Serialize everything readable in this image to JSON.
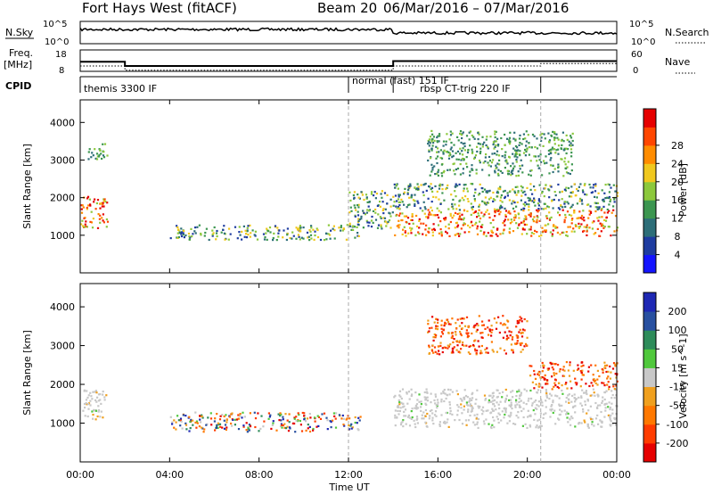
{
  "title": {
    "radar": "Fort Hays West (fitACF)",
    "beam": "Beam 20",
    "dates": "06/Mar/2016 – 07/Mar/2016"
  },
  "strips": {
    "nsky_label": "N.Sky",
    "nsky_ticks": [
      "10^5",
      "10^0"
    ],
    "nsearch_label": "N.Search",
    "nsearch_ticks": [
      "10^5",
      "10^0"
    ],
    "freq_label": "Freq.",
    "freq_unit": "[MHz]",
    "freq_ticks": [
      "18",
      "8"
    ],
    "nave_label": "Nave",
    "nave_ticks": [
      "60",
      "0"
    ],
    "cpid_label": "CPID",
    "cpid_segments": [
      {
        "label": "themis 3300 IF",
        "start_hr": 0.0
      },
      {
        "label": "normal (fast) 151 IF",
        "start_hr": 12.0
      },
      {
        "label": "rbsp CT-trig 220 IF",
        "start_hr": 14.0
      },
      {
        "label": "",
        "start_hr": 20.6
      }
    ],
    "freq_series": {
      "x_hr": [
        0,
        2,
        2,
        12,
        14,
        14,
        24
      ],
      "y_mhz": [
        12.5,
        12.5,
        10.5,
        10.5,
        10.5,
        12.8,
        12.8
      ]
    },
    "nave_series": {
      "x_hr": [
        0,
        2,
        2,
        12,
        14,
        14,
        20.6,
        20.6,
        24
      ],
      "y": [
        15,
        15,
        3,
        3,
        3,
        15,
        15,
        22,
        22
      ]
    }
  },
  "chart_data": [
    {
      "type": "heatmap",
      "name": "power",
      "ylabel": "Slant Range [km]",
      "ylim": [
        0,
        4600
      ],
      "yticks": [
        "1000",
        "2000",
        "3000",
        "4000"
      ],
      "xlim_hr": [
        0,
        24
      ],
      "colorbar": {
        "label": "Power [dB]",
        "ticks": [
          "4",
          "8",
          "12",
          "16",
          "20",
          "24",
          "28"
        ],
        "colors": [
          "#1414ff",
          "#1e3ca0",
          "#2d6e78",
          "#3c9650",
          "#8cc83c",
          "#f0c81e",
          "#ff8c00",
          "#ff4600",
          "#e60000"
        ]
      },
      "features": [
        {
          "start_hr": 0.0,
          "end_hr": 1.2,
          "range_km": [
            1200,
            2100
          ],
          "level": "strong"
        },
        {
          "start_hr": 0.3,
          "end_hr": 1.2,
          "range_km": [
            3000,
            3500
          ],
          "level": "weak"
        },
        {
          "start_hr": 4.0,
          "end_hr": 12.5,
          "range_km": [
            900,
            1300
          ],
          "level": "moderate"
        },
        {
          "start_hr": 12.0,
          "end_hr": 14.0,
          "range_km": [
            1200,
            2200
          ],
          "level": "moderate"
        },
        {
          "start_hr": 14.0,
          "end_hr": 24.0,
          "range_km": [
            1000,
            1700
          ],
          "level": "strong"
        },
        {
          "start_hr": 14.0,
          "end_hr": 24.0,
          "range_km": [
            1700,
            2400
          ],
          "level": "moderate"
        },
        {
          "start_hr": 15.5,
          "end_hr": 22.0,
          "range_km": [
            2600,
            3800
          ],
          "level": "weak"
        }
      ]
    },
    {
      "type": "heatmap",
      "name": "velocity",
      "ylabel": "Slant Range [km]",
      "ylim": [
        0,
        4600
      ],
      "yticks": [
        "1000",
        "2000",
        "3000",
        "4000"
      ],
      "xlim_hr": [
        0,
        24
      ],
      "colorbar": {
        "label": "Velocity [m s^-1]",
        "ticks": [
          "200",
          "100",
          "50",
          "15",
          "-15",
          "-50",
          "-100",
          "-200"
        ],
        "colors": [
          "#1e28b4",
          "#2850a0",
          "#2e8c5a",
          "#50c83c",
          "#c8c8c8",
          "#f0a01e",
          "#ff7800",
          "#ff3c00",
          "#e60000"
        ]
      },
      "features": [
        {
          "start_hr": 0.0,
          "end_hr": 1.2,
          "range_km": [
            1100,
            1900
          ],
          "level": "ground-scatter"
        },
        {
          "start_hr": 4.0,
          "end_hr": 12.5,
          "range_km": [
            800,
            1300
          ],
          "level": "mixed"
        },
        {
          "start_hr": 14.0,
          "end_hr": 24.0,
          "range_km": [
            900,
            1900
          ],
          "level": "ground-scatter"
        },
        {
          "start_hr": 15.5,
          "end_hr": 20.0,
          "range_km": [
            2800,
            3800
          ],
          "level": "negative"
        },
        {
          "start_hr": 20.0,
          "end_hr": 24.0,
          "range_km": [
            1900,
            2600
          ],
          "level": "negative"
        }
      ]
    }
  ],
  "xaxis": {
    "label": "Time UT",
    "ticks": [
      "00:00",
      "04:00",
      "08:00",
      "12:00",
      "16:00",
      "20:00",
      "00:00"
    ],
    "tick_hr": [
      0,
      4,
      8,
      12,
      16,
      20,
      24
    ],
    "dashed_lines_hr": [
      12.0,
      20.6
    ]
  }
}
